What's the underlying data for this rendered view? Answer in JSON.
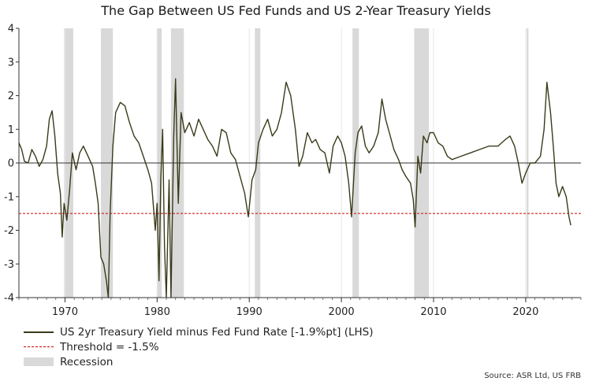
{
  "chart_data": {
    "type": "line",
    "title": "The Gap Between US Fed Funds and US 2-Year Treasury Yields",
    "xlabel": "",
    "ylabel": "",
    "xlim": [
      1965,
      2026
    ],
    "ylim": [
      -4,
      4
    ],
    "y_ticks": [
      "4",
      "3",
      "2",
      "1",
      "0",
      "-1",
      "-2",
      "-3",
      "-4"
    ],
    "x_ticks": [
      "1970",
      "1980",
      "1990",
      "2000",
      "2010",
      "2020"
    ],
    "threshold": -1.5,
    "recessions": [
      [
        1969.9,
        1970.9
      ],
      [
        1973.9,
        1975.2
      ],
      [
        1980.0,
        1980.5
      ],
      [
        1981.5,
        1982.9
      ],
      [
        1990.6,
        1991.2
      ],
      [
        2001.2,
        2001.9
      ],
      [
        2007.9,
        2009.5
      ],
      [
        2020.1,
        2020.3
      ]
    ],
    "series": [
      {
        "name": "US 2yr Treasury Yield minus Fed Fund Rate [-1.9%pt] (LHS)",
        "color": "#3a3a1a",
        "points": [
          [
            1965.0,
            0.6
          ],
          [
            1965.3,
            0.4
          ],
          [
            1965.6,
            0.05
          ],
          [
            1966.0,
            0.0
          ],
          [
            1966.4,
            0.4
          ],
          [
            1966.8,
            0.2
          ],
          [
            1967.2,
            -0.1
          ],
          [
            1967.6,
            0.1
          ],
          [
            1968.0,
            0.5
          ],
          [
            1968.3,
            1.3
          ],
          [
            1968.6,
            1.55
          ],
          [
            1968.9,
            0.8
          ],
          [
            1969.2,
            -0.3
          ],
          [
            1969.5,
            -0.9
          ],
          [
            1969.7,
            -2.2
          ],
          [
            1969.9,
            -1.2
          ],
          [
            1970.2,
            -1.7
          ],
          [
            1970.5,
            -0.8
          ],
          [
            1970.8,
            0.3
          ],
          [
            1971.2,
            -0.2
          ],
          [
            1971.6,
            0.3
          ],
          [
            1972.0,
            0.5
          ],
          [
            1972.5,
            0.2
          ],
          [
            1973.0,
            -0.1
          ],
          [
            1973.3,
            -0.6
          ],
          [
            1973.6,
            -1.2
          ],
          [
            1973.9,
            -2.8
          ],
          [
            1974.2,
            -3.0
          ],
          [
            1974.5,
            -3.5
          ],
          [
            1974.7,
            -4.0
          ],
          [
            1974.9,
            -1.5
          ],
          [
            1975.2,
            0.5
          ],
          [
            1975.5,
            1.5
          ],
          [
            1976.0,
            1.8
          ],
          [
            1976.5,
            1.7
          ],
          [
            1977.0,
            1.2
          ],
          [
            1977.5,
            0.8
          ],
          [
            1978.0,
            0.6
          ],
          [
            1978.5,
            0.2
          ],
          [
            1979.0,
            -0.2
          ],
          [
            1979.4,
            -0.6
          ],
          [
            1979.8,
            -2.0
          ],
          [
            1980.0,
            -1.2
          ],
          [
            1980.2,
            -3.5
          ],
          [
            1980.4,
            -0.5
          ],
          [
            1980.6,
            1.0
          ],
          [
            1980.8,
            -2.5
          ],
          [
            1981.0,
            -4.0
          ],
          [
            1981.3,
            -0.5
          ],
          [
            1981.5,
            -4.0
          ],
          [
            1981.8,
            0.8
          ],
          [
            1982.0,
            2.5
          ],
          [
            1982.3,
            -1.2
          ],
          [
            1982.6,
            1.5
          ],
          [
            1983.0,
            0.9
          ],
          [
            1983.5,
            1.2
          ],
          [
            1984.0,
            0.8
          ],
          [
            1984.5,
            1.3
          ],
          [
            1985.0,
            1.0
          ],
          [
            1985.5,
            0.7
          ],
          [
            1986.0,
            0.5
          ],
          [
            1986.5,
            0.2
          ],
          [
            1987.0,
            1.0
          ],
          [
            1987.5,
            0.9
          ],
          [
            1988.0,
            0.3
          ],
          [
            1988.5,
            0.1
          ],
          [
            1989.0,
            -0.4
          ],
          [
            1989.5,
            -0.9
          ],
          [
            1989.9,
            -1.6
          ],
          [
            1990.3,
            -0.5
          ],
          [
            1990.7,
            -0.2
          ],
          [
            1991.0,
            0.6
          ],
          [
            1991.5,
            1.0
          ],
          [
            1992.0,
            1.3
          ],
          [
            1992.5,
            0.8
          ],
          [
            1993.0,
            1.0
          ],
          [
            1993.5,
            1.5
          ],
          [
            1994.0,
            2.4
          ],
          [
            1994.5,
            2.0
          ],
          [
            1995.0,
            1.0
          ],
          [
            1995.4,
            -0.1
          ],
          [
            1995.8,
            0.2
          ],
          [
            1996.3,
            0.9
          ],
          [
            1996.8,
            0.6
          ],
          [
            1997.2,
            0.7
          ],
          [
            1997.7,
            0.4
          ],
          [
            1998.2,
            0.3
          ],
          [
            1998.7,
            -0.3
          ],
          [
            1999.1,
            0.5
          ],
          [
            1999.6,
            0.8
          ],
          [
            2000.0,
            0.6
          ],
          [
            2000.4,
            0.2
          ],
          [
            2000.8,
            -0.6
          ],
          [
            2001.1,
            -1.6
          ],
          [
            2001.5,
            0.3
          ],
          [
            2001.8,
            0.9
          ],
          [
            2002.2,
            1.1
          ],
          [
            2002.6,
            0.5
          ],
          [
            2003.0,
            0.3
          ],
          [
            2003.5,
            0.5
          ],
          [
            2004.0,
            0.9
          ],
          [
            2004.4,
            1.9
          ],
          [
            2004.8,
            1.3
          ],
          [
            2005.2,
            0.9
          ],
          [
            2005.7,
            0.4
          ],
          [
            2006.2,
            0.1
          ],
          [
            2006.6,
            -0.2
          ],
          [
            2007.0,
            -0.4
          ],
          [
            2007.5,
            -0.6
          ],
          [
            2007.8,
            -1.1
          ],
          [
            2008.0,
            -1.9
          ],
          [
            2008.3,
            0.2
          ],
          [
            2008.6,
            -0.3
          ],
          [
            2008.9,
            0.8
          ],
          [
            2009.3,
            0.6
          ],
          [
            2009.6,
            0.9
          ],
          [
            2010.0,
            0.9
          ],
          [
            2010.5,
            0.6
          ],
          [
            2011.0,
            0.5
          ],
          [
            2011.5,
            0.2
          ],
          [
            2012.0,
            0.1
          ],
          [
            2013.0,
            0.2
          ],
          [
            2014.0,
            0.3
          ],
          [
            2015.0,
            0.4
          ],
          [
            2016.0,
            0.5
          ],
          [
            2017.0,
            0.5
          ],
          [
            2017.8,
            0.7
          ],
          [
            2018.3,
            0.8
          ],
          [
            2018.8,
            0.5
          ],
          [
            2019.2,
            0.0
          ],
          [
            2019.6,
            -0.6
          ],
          [
            2020.0,
            -0.3
          ],
          [
            2020.5,
            0.0
          ],
          [
            2021.0,
            0.0
          ],
          [
            2021.6,
            0.2
          ],
          [
            2022.0,
            1.0
          ],
          [
            2022.3,
            2.4
          ],
          [
            2022.7,
            1.5
          ],
          [
            2023.0,
            0.5
          ],
          [
            2023.3,
            -0.6
          ],
          [
            2023.6,
            -1.0
          ],
          [
            2024.0,
            -0.7
          ],
          [
            2024.4,
            -1.0
          ],
          [
            2024.7,
            -1.6
          ],
          [
            2024.9,
            -1.85
          ]
        ]
      },
      {
        "name": "Threshold = -1.5%",
        "color": "#cc0000"
      },
      {
        "name": "Recession",
        "color": "#d9d9d9"
      }
    ]
  },
  "source": "Source: ASR Ltd, US FRB"
}
